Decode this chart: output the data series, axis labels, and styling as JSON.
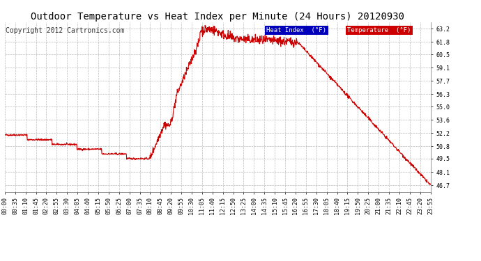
{
  "title": "Outdoor Temperature vs Heat Index per Minute (24 Hours) 20120930",
  "copyright": "Copyright 2012 Cartronics.com",
  "legend_heat_label": "Heat Index  (°F)",
  "legend_temp_label": "Temperature  (°F)",
  "legend_heat_bg": "#0000bb",
  "legend_temp_bg": "#cc0000",
  "legend_text_color": "#ffffff",
  "line_color": "#cc0000",
  "bg_color": "#ffffff",
  "plot_bg_color": "#ffffff",
  "grid_color": "#bbbbbb",
  "grid_linestyle": "--",
  "yticks": [
    46.7,
    48.1,
    49.5,
    50.8,
    52.2,
    53.6,
    55.0,
    56.3,
    57.7,
    59.1,
    60.5,
    61.8,
    63.2
  ],
  "xtick_labels": [
    "00:00",
    "00:35",
    "01:10",
    "01:45",
    "02:20",
    "02:55",
    "03:30",
    "04:05",
    "04:40",
    "05:15",
    "05:50",
    "06:25",
    "07:00",
    "07:35",
    "08:10",
    "08:45",
    "09:20",
    "09:55",
    "10:30",
    "11:05",
    "11:40",
    "12:15",
    "12:50",
    "13:25",
    "14:00",
    "14:35",
    "15:10",
    "15:45",
    "16:20",
    "16:55",
    "17:30",
    "18:05",
    "18:40",
    "19:15",
    "19:50",
    "20:25",
    "21:00",
    "21:35",
    "22:10",
    "22:45",
    "23:20",
    "23:55"
  ],
  "title_fontsize": 10,
  "copyright_fontsize": 7,
  "tick_fontsize": 6,
  "ylim": [
    46.0,
    63.9
  ]
}
